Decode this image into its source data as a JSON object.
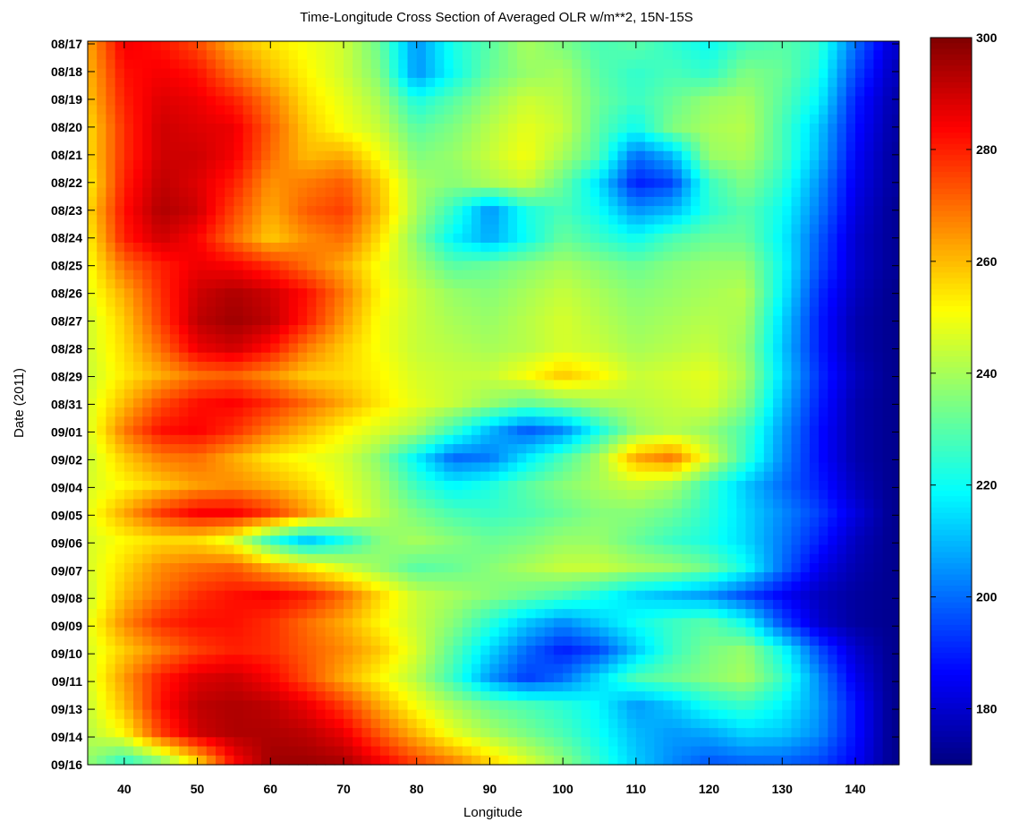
{
  "chart_data": {
    "type": "heatmap",
    "title": "Time-Longitude Cross Section of Averaged OLR w/m**2, 15N-15S",
    "xlabel": "Longitude",
    "ylabel": "Date (2011)",
    "xlim": [
      35,
      146
    ],
    "x_ticks": [
      40,
      50,
      60,
      70,
      80,
      90,
      100,
      110,
      120,
      130,
      140
    ],
    "y_ticks": [
      "08/17",
      "08/18",
      "08/19",
      "08/20",
      "08/21",
      "08/22",
      "08/23",
      "08/24",
      "08/25",
      "08/26",
      "08/27",
      "08/28",
      "08/29",
      "08/31",
      "09/01",
      "09/02",
      "09/04",
      "09/05",
      "09/06",
      "09/07",
      "09/08",
      "09/09",
      "09/10",
      "09/11",
      "09/13",
      "09/14",
      "09/16"
    ],
    "colorbar": {
      "min": 170,
      "max": 300,
      "ticks": [
        180,
        200,
        220,
        240,
        260,
        280,
        300
      ],
      "colormap": "jet"
    },
    "longitude_grid": [
      35,
      40,
      45,
      50,
      55,
      60,
      65,
      70,
      75,
      80,
      85,
      90,
      95,
      100,
      105,
      110,
      115,
      120,
      125,
      130,
      135,
      140,
      145
    ],
    "values": [
      [
        262,
        285,
        282,
        275,
        262,
        255,
        250,
        245,
        232,
        205,
        222,
        230,
        240,
        235,
        228,
        230,
        225,
        220,
        228,
        230,
        225,
        200,
        180
      ],
      [
        260,
        282,
        285,
        282,
        270,
        260,
        252,
        245,
        235,
        205,
        220,
        232,
        238,
        240,
        230,
        225,
        228,
        225,
        235,
        232,
        222,
        195,
        178
      ],
      [
        258,
        280,
        288,
        286,
        280,
        268,
        255,
        248,
        240,
        222,
        230,
        238,
        245,
        242,
        232,
        226,
        232,
        238,
        240,
        230,
        218,
        190,
        176
      ],
      [
        255,
        278,
        290,
        288,
        286,
        272,
        258,
        250,
        244,
        230,
        235,
        242,
        248,
        244,
        230,
        220,
        235,
        240,
        242,
        228,
        212,
        188,
        175
      ],
      [
        255,
        278,
        290,
        290,
        285,
        270,
        260,
        262,
        250,
        235,
        238,
        244,
        250,
        240,
        228,
        200,
        210,
        238,
        240,
        228,
        210,
        186,
        174
      ],
      [
        252,
        280,
        292,
        288,
        280,
        265,
        268,
        272,
        258,
        240,
        236,
        240,
        244,
        232,
        215,
        190,
        195,
        226,
        235,
        224,
        205,
        184,
        174
      ],
      [
        255,
        282,
        294,
        290,
        275,
        262,
        272,
        276,
        260,
        240,
        225,
        205,
        222,
        228,
        220,
        205,
        210,
        224,
        230,
        220,
        202,
        182,
        173
      ],
      [
        252,
        280,
        290,
        284,
        270,
        258,
        266,
        270,
        255,
        236,
        218,
        208,
        220,
        232,
        226,
        220,
        228,
        232,
        232,
        218,
        198,
        180,
        173
      ],
      [
        250,
        270,
        280,
        286,
        284,
        278,
        270,
        262,
        250,
        240,
        230,
        232,
        236,
        240,
        236,
        232,
        236,
        238,
        238,
        220,
        196,
        180,
        173
      ],
      [
        248,
        262,
        278,
        290,
        294,
        290,
        282,
        268,
        252,
        244,
        238,
        236,
        240,
        244,
        240,
        236,
        238,
        240,
        242,
        218,
        192,
        178,
        172
      ],
      [
        245,
        258,
        276,
        292,
        296,
        292,
        280,
        264,
        250,
        244,
        240,
        238,
        242,
        246,
        242,
        238,
        240,
        242,
        240,
        214,
        190,
        176,
        172
      ],
      [
        245,
        256,
        270,
        286,
        290,
        282,
        268,
        258,
        250,
        244,
        242,
        240,
        242,
        246,
        244,
        240,
        242,
        244,
        238,
        212,
        190,
        176,
        172
      ],
      [
        244,
        254,
        262,
        270,
        272,
        266,
        258,
        256,
        252,
        246,
        244,
        244,
        250,
        258,
        252,
        244,
        246,
        248,
        240,
        214,
        192,
        178,
        172
      ],
      [
        246,
        260,
        274,
        282,
        284,
        278,
        270,
        262,
        254,
        248,
        244,
        238,
        232,
        236,
        240,
        242,
        244,
        246,
        236,
        210,
        190,
        176,
        172
      ],
      [
        246,
        268,
        282,
        284,
        278,
        268,
        260,
        252,
        246,
        240,
        226,
        210,
        198,
        204,
        222,
        238,
        242,
        238,
        228,
        206,
        188,
        176,
        172
      ],
      [
        244,
        258,
        268,
        270,
        262,
        254,
        250,
        246,
        236,
        218,
        200,
        202,
        216,
        228,
        240,
        262,
        268,
        246,
        226,
        204,
        188,
        176,
        172
      ],
      [
        246,
        252,
        258,
        264,
        266,
        262,
        256,
        248,
        240,
        226,
        218,
        222,
        230,
        236,
        240,
        244,
        240,
        226,
        212,
        200,
        190,
        178,
        172
      ],
      [
        248,
        262,
        276,
        284,
        284,
        276,
        264,
        252,
        242,
        234,
        228,
        226,
        228,
        232,
        236,
        236,
        232,
        224,
        214,
        204,
        194,
        182,
        172
      ],
      [
        246,
        252,
        256,
        256,
        248,
        226,
        212,
        222,
        236,
        240,
        236,
        232,
        234,
        238,
        238,
        232,
        226,
        222,
        214,
        202,
        190,
        178,
        172
      ],
      [
        246,
        256,
        266,
        270,
        272,
        262,
        254,
        246,
        238,
        230,
        232,
        236,
        240,
        244,
        244,
        240,
        238,
        232,
        220,
        200,
        184,
        176,
        172
      ],
      [
        244,
        260,
        270,
        278,
        282,
        284,
        280,
        270,
        256,
        244,
        240,
        236,
        232,
        228,
        222,
        214,
        210,
        206,
        196,
        186,
        178,
        174,
        172
      ],
      [
        248,
        266,
        278,
        282,
        282,
        278,
        270,
        262,
        252,
        244,
        236,
        224,
        212,
        204,
        212,
        220,
        226,
        230,
        220,
        196,
        180,
        174,
        172
      ],
      [
        246,
        258,
        268,
        276,
        280,
        278,
        272,
        266,
        258,
        246,
        230,
        214,
        200,
        190,
        196,
        212,
        226,
        234,
        238,
        220,
        196,
        180,
        172
      ],
      [
        246,
        264,
        280,
        288,
        290,
        284,
        274,
        262,
        252,
        242,
        226,
        206,
        194,
        200,
        214,
        228,
        232,
        236,
        240,
        226,
        204,
        184,
        172
      ],
      [
        244,
        260,
        282,
        292,
        294,
        292,
        286,
        276,
        262,
        250,
        240,
        232,
        228,
        224,
        218,
        206,
        212,
        222,
        226,
        218,
        206,
        188,
        172
      ],
      [
        242,
        252,
        276,
        290,
        294,
        294,
        292,
        286,
        272,
        260,
        248,
        240,
        234,
        228,
        220,
        210,
        206,
        208,
        214,
        212,
        204,
        188,
        172
      ],
      [
        238,
        226,
        238,
        258,
        284,
        296,
        296,
        294,
        284,
        274,
        266,
        256,
        246,
        236,
        224,
        212,
        204,
        198,
        200,
        200,
        196,
        186,
        172
      ]
    ]
  }
}
